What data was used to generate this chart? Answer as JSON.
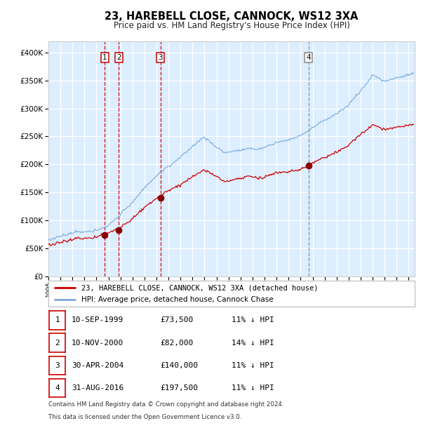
{
  "title": "23, HAREBELL CLOSE, CANNOCK, WS12 3XA",
  "subtitle": "Price paid vs. HM Land Registry's House Price Index (HPI)",
  "legend_line1": "23, HAREBELL CLOSE, CANNOCK, WS12 3XA (detached house)",
  "legend_line2": "HPI: Average price, detached house, Cannock Chase",
  "footer1": "Contains HM Land Registry data © Crown copyright and database right 2024.",
  "footer2": "This data is licensed under the Open Government Licence v3.0.",
  "table": [
    {
      "num": "1",
      "date": "10-SEP-1999",
      "price": "£73,500",
      "hpi": "11% ↓ HPI"
    },
    {
      "num": "2",
      "date": "10-NOV-2000",
      "price": "£82,000",
      "hpi": "14% ↓ HPI"
    },
    {
      "num": "3",
      "date": "30-APR-2004",
      "price": "£140,000",
      "hpi": "11% ↓ HPI"
    },
    {
      "num": "4",
      "date": "31-AUG-2016",
      "price": "£197,500",
      "hpi": "11% ↓ HPI"
    }
  ],
  "sale_points": [
    {
      "year": 1999.7,
      "price": 73500,
      "label": "1"
    },
    {
      "year": 2000.86,
      "price": 82000,
      "label": "2"
    },
    {
      "year": 2004.33,
      "price": 140000,
      "label": "3"
    },
    {
      "year": 2016.67,
      "price": 197500,
      "label": "4"
    }
  ],
  "vlines": [
    {
      "year": 1999.7,
      "color": "#cc0000",
      "label": "1"
    },
    {
      "year": 2000.86,
      "color": "#cc0000",
      "label": "2"
    },
    {
      "year": 2004.33,
      "color": "#cc0000",
      "label": "3"
    },
    {
      "year": 2016.67,
      "color": "#888888",
      "label": "4"
    }
  ],
  "ylim": [
    0,
    420000
  ],
  "xlim_start": 1995.0,
  "xlim_end": 2025.5,
  "red_line_color": "#cc0000",
  "blue_line_color": "#7aaadd",
  "bg_fill_color": "#ddeeff",
  "grid_color": "#ffffff",
  "sale_dot_color": "#880000",
  "figsize": [
    6.0,
    6.2
  ],
  "dpi": 100
}
